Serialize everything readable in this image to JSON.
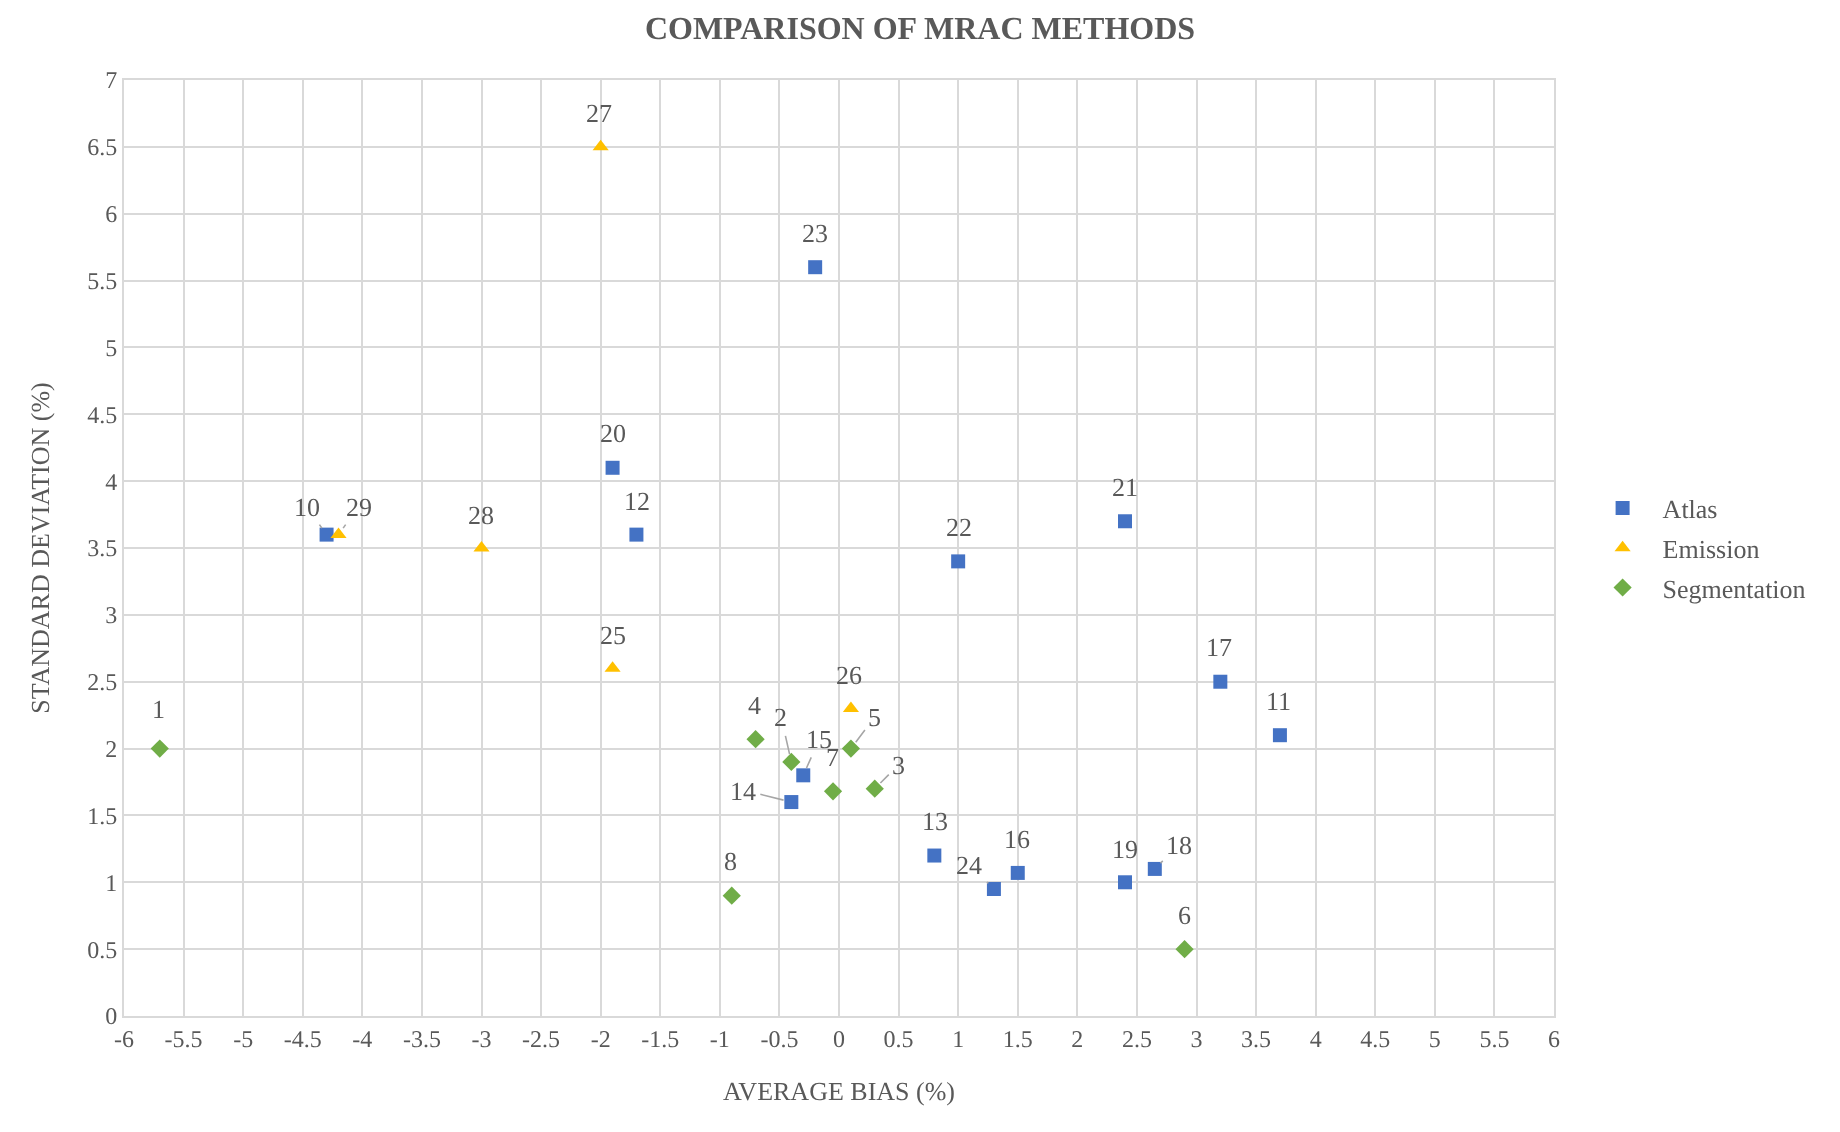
{
  "chart_data": {
    "type": "scatter",
    "title": "COMPARISON OF MRAC METHODS",
    "xlabel": "AVERAGE BIAS (%)",
    "ylabel": "STANDARD DEVIATION (%)",
    "xlim": [
      -6,
      6
    ],
    "xticks": [
      -6,
      -5.5,
      -5,
      -4.5,
      -4,
      -3.5,
      -3,
      -2.5,
      -2,
      -1.5,
      -1,
      -0.5,
      0,
      0.5,
      1,
      1.5,
      2,
      2.5,
      3,
      3.5,
      4,
      4.5,
      5,
      5.5,
      6
    ],
    "ylim": [
      0,
      7
    ],
    "yticks": [
      0,
      0.5,
      1,
      1.5,
      2,
      2.5,
      3,
      3.5,
      4,
      4.5,
      5,
      5.5,
      6,
      6.5,
      7
    ],
    "grid": true,
    "legend": "right",
    "series": [
      {
        "name": "Atlas",
        "color": "#4472c4",
        "marker": "square",
        "x": [
          -4.3,
          -1.7,
          -1.9,
          -0.2,
          1.0,
          2.4,
          3.2,
          3.7,
          -0.3,
          -0.4,
          0.8,
          1.3,
          1.5,
          2.4,
          2.65
        ],
        "values": [
          3.6,
          3.6,
          4.1,
          5.6,
          3.4,
          3.7,
          2.5,
          2.1,
          1.8,
          1.6,
          1.2,
          0.95,
          1.07,
          1.0,
          1.1
        ]
      },
      {
        "name": "Emission",
        "color": "#ffc000",
        "marker": "triangle",
        "x": [
          -4.2,
          -3.0,
          -2.0,
          -1.9,
          0.1
        ],
        "values": [
          3.6,
          3.5,
          6.5,
          2.6,
          2.3
        ]
      },
      {
        "name": "Segmentation",
        "color": "#70ad47",
        "marker": "diamond",
        "x": [
          -5.7,
          -0.7,
          -0.4,
          -0.05,
          0.1,
          0.3,
          -0.9,
          2.9
        ],
        "values": [
          2.0,
          2.07,
          1.9,
          1.68,
          2.0,
          1.7,
          0.9,
          0.5
        ]
      }
    ],
    "annotations": [
      {
        "text": "10",
        "x": -4.3,
        "y": 3.6
      },
      {
        "text": "12",
        "x": -1.7,
        "y": 3.6
      },
      {
        "text": "20",
        "x": -1.9,
        "y": 4.1
      },
      {
        "text": "23",
        "x": -0.2,
        "y": 5.6
      },
      {
        "text": "22",
        "x": 1.0,
        "y": 3.4
      },
      {
        "text": "21",
        "x": 2.4,
        "y": 3.7
      },
      {
        "text": "17",
        "x": 3.2,
        "y": 2.5
      },
      {
        "text": "11",
        "x": 3.7,
        "y": 2.1
      },
      {
        "text": "15",
        "x": -0.3,
        "y": 1.8
      },
      {
        "text": "14",
        "x": -0.4,
        "y": 1.6
      },
      {
        "text": "13",
        "x": 0.8,
        "y": 1.2
      },
      {
        "text": "24",
        "x": 1.3,
        "y": 0.95
      },
      {
        "text": "16",
        "x": 1.5,
        "y": 1.07
      },
      {
        "text": "19",
        "x": 2.4,
        "y": 1.0
      },
      {
        "text": "18",
        "x": 2.65,
        "y": 1.1
      },
      {
        "text": "29",
        "x": -4.2,
        "y": 3.6
      },
      {
        "text": "28",
        "x": -3.0,
        "y": 3.5
      },
      {
        "text": "27",
        "x": -2.0,
        "y": 6.5
      },
      {
        "text": "25",
        "x": -1.9,
        "y": 2.6
      },
      {
        "text": "26",
        "x": 0.1,
        "y": 2.3
      },
      {
        "text": "1",
        "x": -5.7,
        "y": 2.0
      },
      {
        "text": "4",
        "x": -0.7,
        "y": 2.07
      },
      {
        "text": "2",
        "x": -0.4,
        "y": 1.9
      },
      {
        "text": "7",
        "x": -0.05,
        "y": 1.68
      },
      {
        "text": "5",
        "x": 0.1,
        "y": 2.0
      },
      {
        "text": "3",
        "x": 0.3,
        "y": 1.7
      },
      {
        "text": "8",
        "x": -0.9,
        "y": 0.9
      },
      {
        "text": "6",
        "x": 2.9,
        "y": 0.5
      }
    ]
  }
}
